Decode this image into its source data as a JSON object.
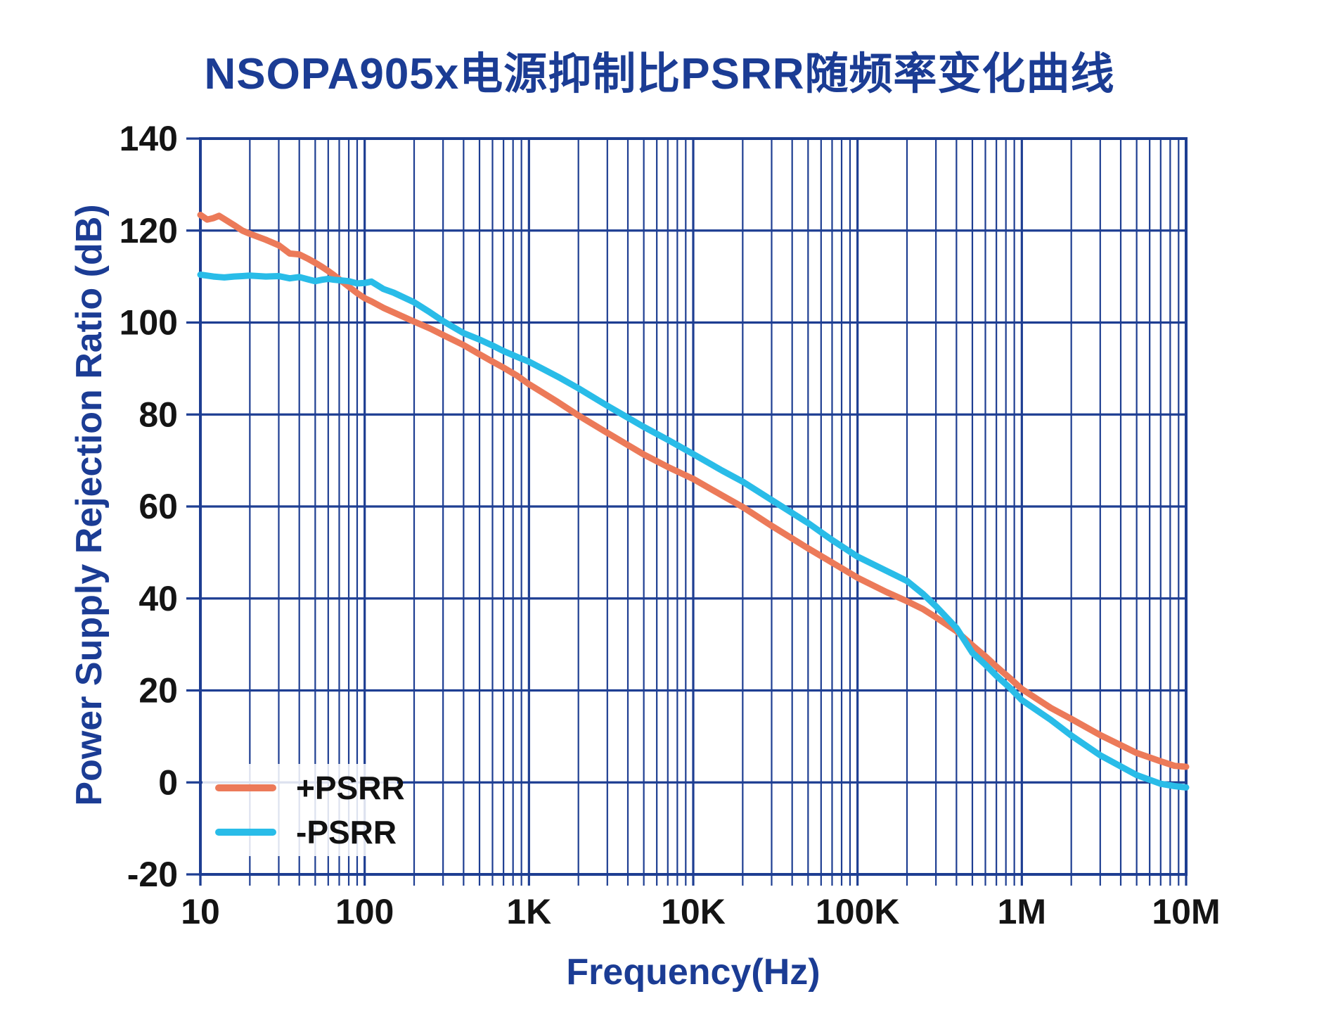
{
  "title": "NSOPA905x电源抑制比PSRR随频率变化曲线",
  "colors": {
    "background": "#FFFFFF",
    "grid": "#1E3E92",
    "heading_text": "#1B3C94",
    "tick_text": "#141414",
    "legend_text": "#111111",
    "pos_psrr": "#EC7A59",
    "neg_psrr": "#29BCE8"
  },
  "legend": {
    "position": "lower-left",
    "items": [
      {
        "label": "+PSRR",
        "color": "#EC7A59"
      },
      {
        "label": "-PSRR",
        "color": "#29BCE8"
      }
    ]
  },
  "chart_data": {
    "type": "line",
    "title": "NSOPA905x电源抑制比PSRR随频率变化曲线",
    "xlabel": "Frequency(Hz)",
    "ylabel": "Power Supply Rejection Ratio (dB)",
    "x_scale": "log",
    "xlim": [
      10,
      10000000
    ],
    "ylim": [
      -20,
      140
    ],
    "grid": "full log grid, major and minor vertical lines, horizontal lines every 20 dB",
    "legend_position": "lower-left",
    "x_ticks": {
      "values": [
        10,
        100,
        1000,
        10000,
        100000,
        1000000,
        10000000
      ],
      "labels": [
        "10",
        "100",
        "1K",
        "10K",
        "100K",
        "1M",
        "10M"
      ]
    },
    "y_ticks": {
      "values": [
        140,
        120,
        100,
        80,
        60,
        40,
        20,
        0,
        -20
      ],
      "labels": [
        "140",
        "120",
        "100",
        "80",
        "60",
        "40",
        "20",
        "0",
        "-20"
      ]
    },
    "x": [
      10,
      11,
      12,
      13,
      14,
      16,
      18,
      20,
      25,
      30,
      35,
      40,
      45,
      50,
      55,
      60,
      65,
      70,
      80,
      90,
      100,
      110,
      130,
      150,
      200,
      250,
      300,
      400,
      500,
      600,
      700,
      850,
      1000,
      1500,
      2000,
      3000,
      5000,
      7000,
      10000,
      15000,
      20000,
      30000,
      50000,
      70000,
      100000,
      150000,
      200000,
      250000,
      300000,
      400000,
      500000,
      600000,
      700000,
      850000,
      1000000,
      1500000,
      2000000,
      3000000,
      5000000,
      7000000,
      8500000,
      10000000
    ],
    "series": [
      {
        "name": "+PSRR",
        "color": "#EC7A59",
        "values": [
          123.4,
          122.4,
          122.7,
          123.2,
          122.5,
          121.2,
          120.0,
          119.3,
          118.0,
          116.8,
          115.0,
          114.8,
          113.9,
          113.0,
          112.1,
          111.2,
          110.3,
          109.4,
          107.8,
          106.4,
          105.3,
          104.6,
          103.2,
          102.2,
          100.2,
          98.7,
          97.3,
          95.1,
          93.1,
          91.5,
          90.2,
          88.4,
          86.6,
          82.7,
          79.8,
          76.0,
          71.3,
          68.6,
          66.0,
          62.4,
          59.9,
          55.8,
          50.9,
          47.8,
          44.5,
          41.4,
          39.4,
          37.7,
          35.9,
          32.9,
          29.8,
          27.4,
          25.2,
          22.6,
          20.3,
          16.2,
          13.8,
          10.3,
          6.4,
          4.6,
          3.6,
          3.4
        ]
      },
      {
        "name": "-PSRR",
        "color": "#29BCE8",
        "values": [
          110.4,
          110.2,
          110.0,
          109.9,
          109.8,
          110.0,
          110.1,
          110.2,
          110.0,
          110.1,
          109.6,
          109.9,
          109.4,
          109.0,
          109.3,
          109.5,
          109.3,
          109.2,
          109.0,
          108.5,
          108.6,
          108.9,
          107.3,
          106.5,
          104.4,
          102.2,
          100.3,
          97.7,
          96.3,
          95.0,
          93.8,
          92.5,
          91.5,
          88.2,
          85.7,
          81.9,
          77.3,
          74.5,
          71.4,
          67.8,
          65.4,
          61.4,
          56.4,
          52.7,
          49.1,
          46.0,
          43.8,
          41.0,
          38.3,
          33.6,
          28.2,
          25.6,
          23.2,
          20.5,
          17.9,
          13.6,
          10.2,
          5.9,
          1.6,
          -0.3,
          -0.8,
          -1.1
        ]
      }
    ]
  }
}
